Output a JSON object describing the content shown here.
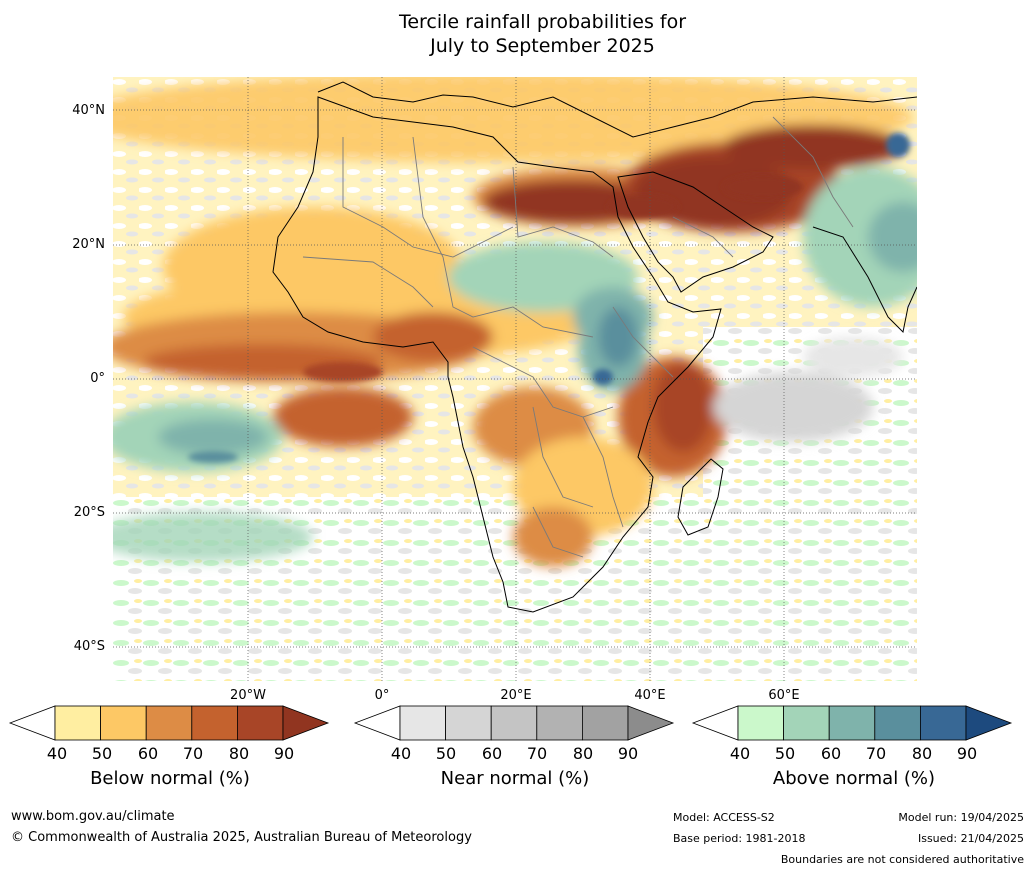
{
  "title_line1": "Tercile rainfall probabilities for",
  "title_line2": "July to September 2025",
  "lat_labels": [
    "40°N",
    "20°N",
    "0°",
    "20°S",
    "40°S"
  ],
  "lon_labels": [
    "20°W",
    "0°",
    "20°E",
    "40°E",
    "60°E"
  ],
  "legends": [
    {
      "label": "Below normal (%)",
      "ticks": [
        "40",
        "50",
        "60",
        "70",
        "80",
        "90"
      ],
      "colors": [
        "#ffeea1",
        "#fdc865",
        "#dd8c45",
        "#c4622e",
        "#a84527",
        "#913520"
      ]
    },
    {
      "label": "Near normal (%)",
      "ticks": [
        "40",
        "50",
        "60",
        "70",
        "80",
        "90"
      ],
      "colors": [
        "#e6e6e6",
        "#d5d5d5",
        "#c4c4c4",
        "#b2b2b2",
        "#a2a2a2",
        "#8c8c8c"
      ]
    },
    {
      "label": "Above normal (%)",
      "ticks": [
        "40",
        "50",
        "60",
        "70",
        "80",
        "90"
      ],
      "colors": [
        "#cbf8cb",
        "#a3d4b8",
        "#7fb3ab",
        "#5a8f9d",
        "#386895",
        "#1d4a7e"
      ]
    }
  ],
  "footer": {
    "website": "www.bom.gov.au/climate",
    "copyright": "© Commonwealth of Australia 2025, Australian Bureau of Meteorology",
    "model": "Model: ACCESS-S2",
    "base_period": "Base period: 1981-2018",
    "model_run": "Model run: 19/04/2025",
    "issued": "Issued: 21/04/2025",
    "disclaimer": "Boundaries are not considered authoritative"
  }
}
